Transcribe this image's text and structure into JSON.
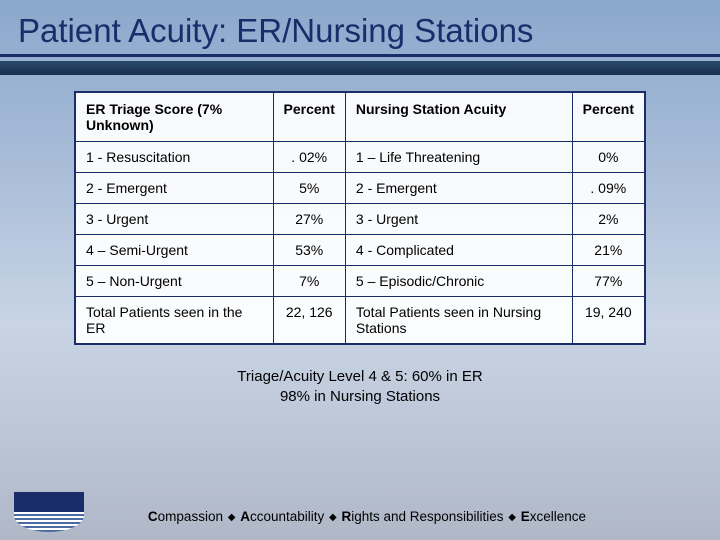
{
  "title": "Patient Acuity: ER/Nursing Stations",
  "background": {
    "gradient_colors": [
      "#8aa8cc",
      "#a8bcd8",
      "#c8d4e4",
      "#b0b8c8"
    ],
    "title_color": "#1a2d6b",
    "border_color": "#1a2d6b",
    "table_bg": "rgba(255,255,255,0.92)"
  },
  "table": {
    "headers": [
      "ER Triage Score (7% Unknown)",
      "Percent",
      "Nursing Station Acuity",
      "Percent"
    ],
    "rows": [
      [
        "1 - Resuscitation",
        ". 02%",
        "1 – Life Threatening",
        "0%"
      ],
      [
        "2 - Emergent",
        "5%",
        "2 - Emergent",
        ". 09%"
      ],
      [
        "3 - Urgent",
        "27%",
        "3 - Urgent",
        "2%"
      ],
      [
        "4 – Semi-Urgent",
        "53%",
        "4 - Complicated",
        "21%"
      ],
      [
        "5 – Non-Urgent",
        "7%",
        "5 – Episodic/Chronic",
        "77%"
      ],
      [
        "Total Patients seen in the ER",
        "22, 126",
        "Total Patients seen in Nursing Stations",
        "19, 240"
      ]
    ],
    "center_cols": [
      1,
      3
    ]
  },
  "note": {
    "line1": "Triage/Acuity Level 4 & 5: 60% in ER",
    "line2": "98% in Nursing Stations"
  },
  "tagline": {
    "words": [
      "Compassion",
      "Accountability",
      "Rights and Responsibilities",
      "Excellence"
    ],
    "bold_first_letter": true,
    "separator": "◆"
  },
  "logo": {
    "top_color": "#1a2d6b",
    "wave_colors": [
      "#4a6aa0",
      "#ffffff"
    ]
  }
}
